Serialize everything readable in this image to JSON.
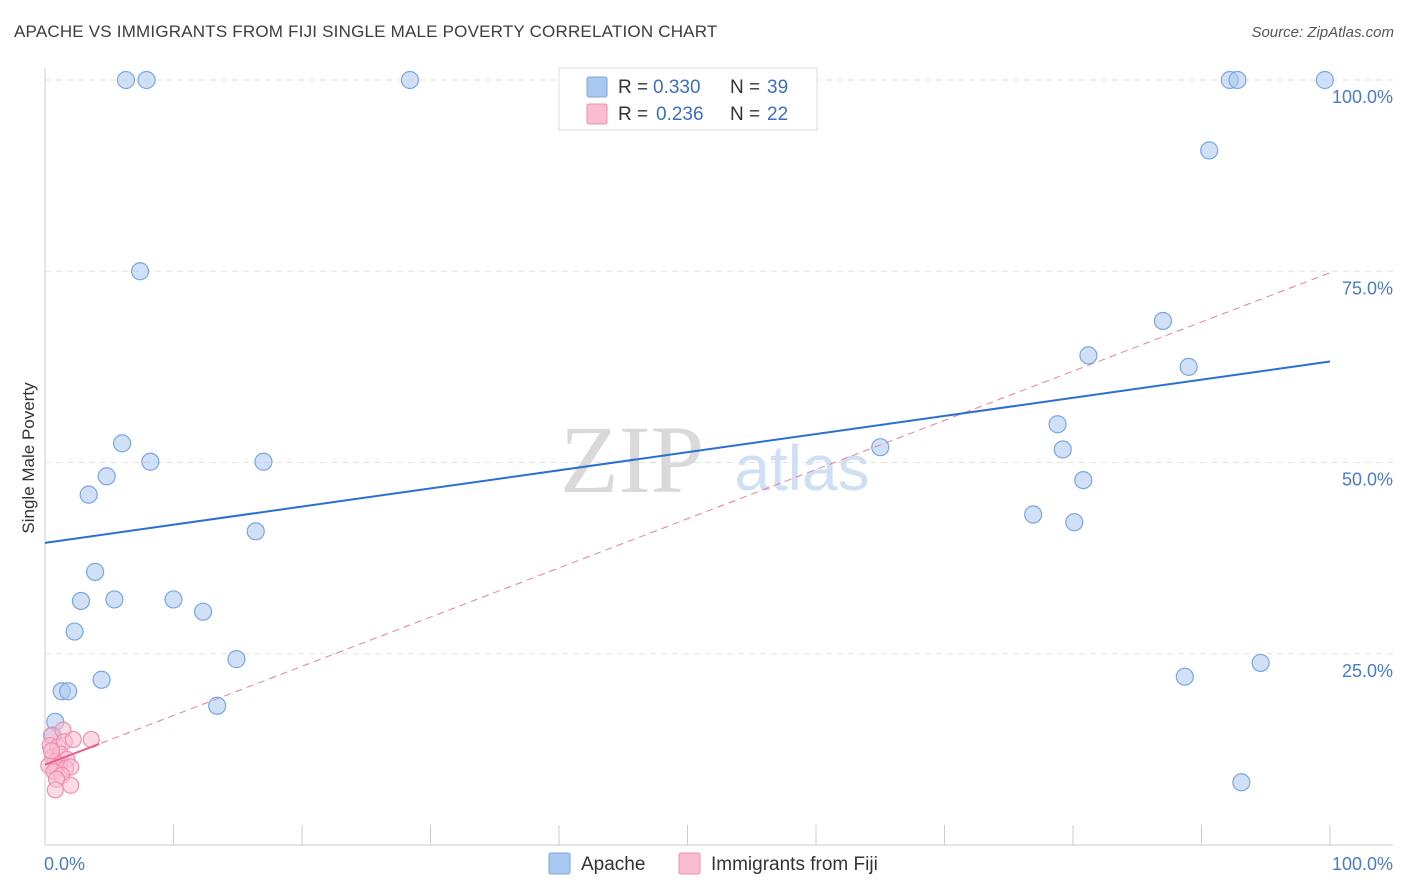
{
  "title": "APACHE VS IMMIGRANTS FROM FIJI SINGLE MALE POVERTY CORRELATION CHART",
  "source": "Source: ZipAtlas.com",
  "watermark": {
    "zip": "ZIP",
    "atlas": "atlas"
  },
  "legend_stats": [
    {
      "r_label": "R =",
      "r_value": "0.330",
      "n_label": "N =",
      "n_value": "39",
      "color": "#a9c8f0",
      "border": "#7aa6e0"
    },
    {
      "r_label": "R =",
      "r_value": "0.236",
      "n_label": "N =",
      "n_value": "22",
      "color": "#f9bcd0",
      "border": "#ee8fb0"
    }
  ],
  "chart_data": {
    "type": "scatter",
    "title": "APACHE VS IMMIGRANTS FROM FIJI SINGLE MALE POVERTY CORRELATION CHART",
    "xlabel": "",
    "ylabel": "Single Male Poverty",
    "xlim": [
      0,
      100
    ],
    "ylim": [
      0,
      100
    ],
    "x_tick_labels": [
      "0.0%",
      "100.0%"
    ],
    "y_ticks": [
      {
        "value": 25,
        "label": "25.0%"
      },
      {
        "value": 50,
        "label": "50.0%"
      },
      {
        "value": 75,
        "label": "75.0%"
      },
      {
        "value": 100,
        "label": "100.0%"
      }
    ],
    "grid": true,
    "legend": [
      "Apache",
      "Immigrants from Fiji"
    ],
    "series": [
      {
        "name": "Apache",
        "color": "#a9c8f0",
        "stroke": "#7aa6e0",
        "trend": {
          "x": [
            0,
            100
          ],
          "y": [
            39.5,
            63.2
          ],
          "color": "#2b6fd0",
          "style": "solid"
        },
        "points": [
          [
            6.3,
            100
          ],
          [
            7.9,
            100
          ],
          [
            28.4,
            100
          ],
          [
            92.2,
            100
          ],
          [
            92.8,
            100
          ],
          [
            99.6,
            100
          ],
          [
            90.6,
            90.8
          ],
          [
            7.4,
            75.0
          ],
          [
            87.0,
            68.5
          ],
          [
            81.2,
            64.0
          ],
          [
            89.0,
            62.5
          ],
          [
            6.0,
            52.5
          ],
          [
            8.2,
            50.1
          ],
          [
            17.0,
            50.1
          ],
          [
            65.0,
            52.0
          ],
          [
            78.8,
            55.0
          ],
          [
            79.2,
            51.7
          ],
          [
            80.8,
            47.7
          ],
          [
            4.8,
            48.2
          ],
          [
            3.4,
            45.8
          ],
          [
            16.4,
            41.0
          ],
          [
            76.9,
            43.2
          ],
          [
            80.1,
            42.2
          ],
          [
            3.9,
            35.7
          ],
          [
            2.8,
            31.9
          ],
          [
            5.4,
            32.1
          ],
          [
            10.0,
            32.1
          ],
          [
            12.3,
            30.5
          ],
          [
            2.3,
            27.9
          ],
          [
            14.9,
            24.3
          ],
          [
            4.4,
            21.6
          ],
          [
            1.3,
            20.1
          ],
          [
            1.8,
            20.1
          ],
          [
            94.6,
            23.8
          ],
          [
            88.7,
            22.0
          ],
          [
            13.4,
            18.2
          ],
          [
            0.8,
            16.1
          ],
          [
            0.6,
            14.3
          ],
          [
            93.1,
            8.2
          ]
        ]
      },
      {
        "name": "Immigrants from Fiji",
        "color": "#f9bcd0",
        "stroke": "#ee8fb0",
        "trend": {
          "x": [
            0,
            4.2
          ],
          "y": [
            10.5,
            13.2
          ],
          "color": "#e85f8f",
          "style": "solid"
        },
        "trend_extended": {
          "x": [
            0,
            100
          ],
          "y": [
            10.5,
            74.8
          ],
          "color": "#e87fa0",
          "style": "dashed"
        },
        "points": [
          [
            0.5,
            14.3
          ],
          [
            1.4,
            15.0
          ],
          [
            0.4,
            13.0
          ],
          [
            1.0,
            12.8
          ],
          [
            1.5,
            13.5
          ],
          [
            2.2,
            13.8
          ],
          [
            3.6,
            13.8
          ],
          [
            0.6,
            11.5
          ],
          [
            1.2,
            11.9
          ],
          [
            0.8,
            10.9
          ],
          [
            1.7,
            11.2
          ],
          [
            1.1,
            10.5
          ],
          [
            0.9,
            10.2
          ],
          [
            1.6,
            10.0
          ],
          [
            0.3,
            10.4
          ],
          [
            2.0,
            10.2
          ],
          [
            0.7,
            9.6
          ],
          [
            1.3,
            9.1
          ],
          [
            0.9,
            8.6
          ],
          [
            2.0,
            7.8
          ],
          [
            0.8,
            7.2
          ],
          [
            0.5,
            12.3
          ]
        ]
      }
    ]
  }
}
